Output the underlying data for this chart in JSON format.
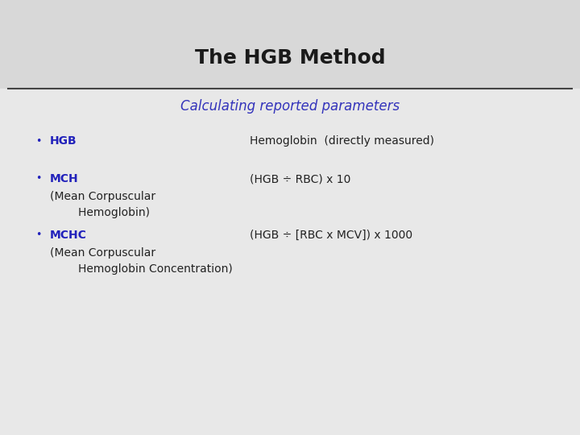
{
  "title": "The HGB Method",
  "subtitle": "Calculating reported parameters",
  "title_color": "#1a1a1a",
  "subtitle_color": "#3333bb",
  "bullet_color": "#2222bb",
  "text_color": "#222222",
  "bg_top": "#d8d8d8",
  "bg_bottom": "#e8e8e8",
  "divider_color": "#444444",
  "bullets": [
    {
      "label": "HGB",
      "desc1": "",
      "desc2": "",
      "formula": "Hemoglobin  (directly measured)"
    },
    {
      "label": "MCH",
      "desc1": "(Mean Corpuscular",
      "desc2": "        Hemoglobin)",
      "formula": "(HGB ÷ RBC) x 10"
    },
    {
      "label": "MCHC",
      "desc1": "(Mean Corpuscular",
      "desc2": "        Hemoglobin Concentration)",
      "formula": "(HGB ÷ [RBC x MCV]) x 1000"
    }
  ]
}
